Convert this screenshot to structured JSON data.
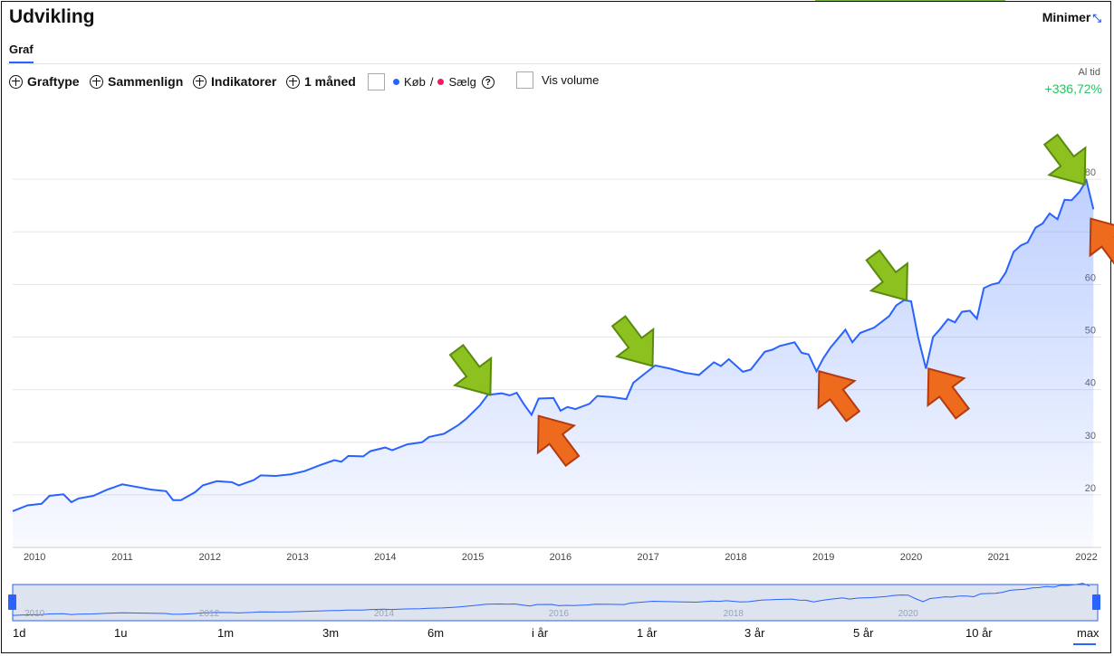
{
  "header": {
    "title": "Udvikling",
    "minimize_label": "Minimer",
    "minimize_icon": "collapse-arrows-icon"
  },
  "tabs": [
    {
      "label": "Graf",
      "active": true
    }
  ],
  "toolbar": {
    "graph_type": "Graftype",
    "compare": "Sammenlign",
    "indicators": "Indikatorer",
    "interval": "1 måned",
    "buy_label": "Køb",
    "separator": "/",
    "sell_label": "Sælg",
    "help": "?",
    "volume_label": "Vis volume",
    "buy_color": "#2962ff",
    "sell_color": "#e91e63"
  },
  "performance": {
    "period_label": "Al tid",
    "value": "+336,72%",
    "color": "#22c55e"
  },
  "chart_data": {
    "type": "area",
    "line_color": "#2962ff",
    "y_ticks": [
      20,
      30,
      40,
      50,
      60,
      70,
      80
    ],
    "y_tick_labels": [
      "20",
      "30",
      "40",
      "50",
      "60",
      "",
      "80"
    ],
    "ylim": [
      10,
      90
    ],
    "xlim": [
      2009.75,
      2022.17
    ],
    "x_ticks": [
      2010,
      2011,
      2012,
      2013,
      2014,
      2015,
      2016,
      2017,
      2018,
      2019,
      2020,
      2021,
      2022
    ],
    "x_tick_labels": [
      "2010",
      "2011",
      "2012",
      "2013",
      "2014",
      "2015",
      "2016",
      "2017",
      "2018",
      "2019",
      "2020",
      "2021",
      "2022"
    ],
    "grid": true,
    "series": [
      {
        "points": [
          [
            2009.75,
            16.9
          ],
          [
            2009.92,
            18.0
          ],
          [
            2010.08,
            18.3
          ],
          [
            2010.17,
            19.8
          ],
          [
            2010.33,
            20.1
          ],
          [
            2010.42,
            18.6
          ],
          [
            2010.5,
            19.3
          ],
          [
            2010.67,
            19.8
          ],
          [
            2010.83,
            21.0
          ],
          [
            2011.0,
            22.0
          ],
          [
            2011.17,
            21.5
          ],
          [
            2011.33,
            21.0
          ],
          [
            2011.5,
            20.7
          ],
          [
            2011.58,
            19.0
          ],
          [
            2011.67,
            19.0
          ],
          [
            2011.83,
            20.5
          ],
          [
            2011.92,
            21.8
          ],
          [
            2012.08,
            22.6
          ],
          [
            2012.25,
            22.4
          ],
          [
            2012.33,
            21.8
          ],
          [
            2012.5,
            22.8
          ],
          [
            2012.58,
            23.7
          ],
          [
            2012.75,
            23.6
          ],
          [
            2012.92,
            23.9
          ],
          [
            2013.08,
            24.5
          ],
          [
            2013.25,
            25.6
          ],
          [
            2013.42,
            26.6
          ],
          [
            2013.5,
            26.3
          ],
          [
            2013.58,
            27.4
          ],
          [
            2013.75,
            27.3
          ],
          [
            2013.83,
            28.3
          ],
          [
            2014.0,
            29.0
          ],
          [
            2014.08,
            28.5
          ],
          [
            2014.25,
            29.6
          ],
          [
            2014.42,
            30.0
          ],
          [
            2014.5,
            31.0
          ],
          [
            2014.67,
            31.6
          ],
          [
            2014.83,
            33.2
          ],
          [
            2014.92,
            34.4
          ],
          [
            2015.08,
            37.0
          ],
          [
            2015.17,
            39.0
          ],
          [
            2015.33,
            39.3
          ],
          [
            2015.42,
            38.9
          ],
          [
            2015.5,
            39.4
          ],
          [
            2015.58,
            37.3
          ],
          [
            2015.67,
            35.2
          ],
          [
            2015.75,
            38.3
          ],
          [
            2015.92,
            38.4
          ],
          [
            2016.0,
            36.0
          ],
          [
            2016.08,
            36.7
          ],
          [
            2016.17,
            36.3
          ],
          [
            2016.33,
            37.3
          ],
          [
            2016.42,
            38.8
          ],
          [
            2016.58,
            38.6
          ],
          [
            2016.75,
            38.2
          ],
          [
            2016.83,
            41.3
          ],
          [
            2016.92,
            42.5
          ],
          [
            2017.08,
            44.6
          ],
          [
            2017.25,
            44.0
          ],
          [
            2017.42,
            43.2
          ],
          [
            2017.58,
            42.8
          ],
          [
            2017.75,
            45.2
          ],
          [
            2017.83,
            44.5
          ],
          [
            2017.92,
            45.8
          ],
          [
            2018.08,
            43.4
          ],
          [
            2018.17,
            43.8
          ],
          [
            2018.33,
            47.2
          ],
          [
            2018.42,
            47.6
          ],
          [
            2018.5,
            48.3
          ],
          [
            2018.67,
            49.0
          ],
          [
            2018.75,
            47.0
          ],
          [
            2018.83,
            46.7
          ],
          [
            2018.92,
            43.5
          ],
          [
            2019.0,
            46.0
          ],
          [
            2019.08,
            48.0
          ],
          [
            2019.17,
            49.8
          ],
          [
            2019.25,
            51.4
          ],
          [
            2019.33,
            49.0
          ],
          [
            2019.42,
            50.8
          ],
          [
            2019.58,
            51.8
          ],
          [
            2019.75,
            54.0
          ],
          [
            2019.83,
            56.0
          ],
          [
            2019.92,
            57.0
          ],
          [
            2020.0,
            56.8
          ],
          [
            2020.08,
            50.0
          ],
          [
            2020.17,
            44.0
          ],
          [
            2020.25,
            50.0
          ],
          [
            2020.33,
            51.5
          ],
          [
            2020.42,
            53.4
          ],
          [
            2020.5,
            52.8
          ],
          [
            2020.58,
            54.8
          ],
          [
            2020.67,
            55.0
          ],
          [
            2020.75,
            53.5
          ],
          [
            2020.83,
            59.3
          ],
          [
            2020.92,
            60.0
          ],
          [
            2021.0,
            60.3
          ],
          [
            2021.08,
            62.3
          ],
          [
            2021.17,
            66.2
          ],
          [
            2021.25,
            67.4
          ],
          [
            2021.33,
            68.0
          ],
          [
            2021.42,
            70.8
          ],
          [
            2021.5,
            71.6
          ],
          [
            2021.58,
            73.5
          ],
          [
            2021.67,
            72.4
          ],
          [
            2021.75,
            76.1
          ],
          [
            2021.83,
            76.0
          ],
          [
            2021.92,
            77.6
          ],
          [
            2022.0,
            79.8
          ],
          [
            2022.08,
            74.3
          ]
        ]
      }
    ],
    "navigator": {
      "labels": [
        "2010",
        "2012",
        "2014",
        "2016",
        "2018",
        "2020"
      ],
      "label_years": [
        2010,
        2012,
        2014,
        2016,
        2018,
        2020
      ]
    },
    "annotations": [
      {
        "type": "arrow",
        "color": "green",
        "points_to": [
          2015.2,
          39
        ]
      },
      {
        "type": "arrow",
        "color": "green",
        "points_to": [
          2017.05,
          44.5
        ]
      },
      {
        "type": "arrow",
        "color": "green",
        "points_to": [
          2019.95,
          57
        ]
      },
      {
        "type": "arrow",
        "color": "green",
        "points_to": [
          2021.98,
          79
        ]
      },
      {
        "type": "arrow",
        "color": "orange",
        "points_to": [
          2015.75,
          35
        ]
      },
      {
        "type": "arrow",
        "color": "orange",
        "points_to": [
          2018.95,
          43.5
        ]
      },
      {
        "type": "arrow",
        "color": "orange",
        "points_to": [
          2020.2,
          44
        ]
      },
      {
        "type": "arrow",
        "color": "orange",
        "points_to": [
          2022.05,
          72.5
        ]
      }
    ]
  },
  "ranges": [
    "1d",
    "1u",
    "1m",
    "3m",
    "6m",
    "i år",
    "1 år",
    "3 år",
    "5 år",
    "10 år",
    "max"
  ],
  "active_range": "max"
}
